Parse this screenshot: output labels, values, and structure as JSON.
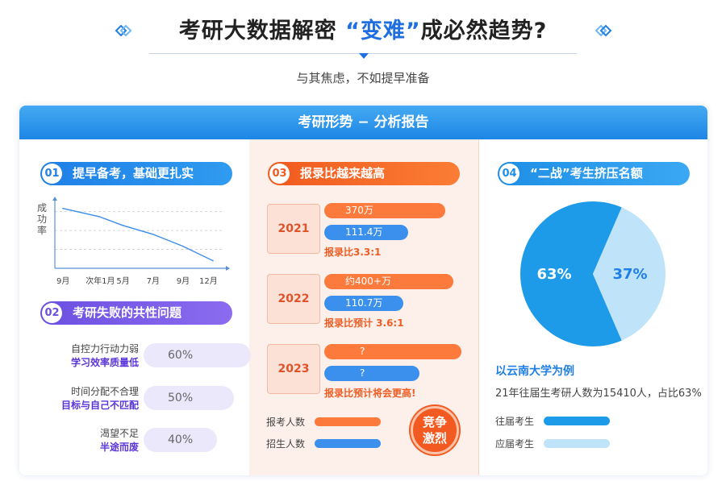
{
  "header": {
    "title_part1": "考研大数据解密 ",
    "title_highlight": "“变难”",
    "title_part2": "成必然趋势?",
    "subtitle": "与其焦虑，不如提早准备"
  },
  "card": {
    "title": "考研形势 − 分析报告"
  },
  "section1": {
    "num": "01",
    "title": "提早备考，基础更扎实",
    "ylabel": "成功率",
    "chart_data": {
      "type": "line",
      "title": "",
      "xlabel": "",
      "ylabel": "成功率",
      "categories": [
        "9月",
        "次年1月",
        "5月",
        "7月",
        "9月",
        "12月"
      ],
      "series": [
        {
          "values": [
            0.95,
            0.82,
            0.68,
            0.54,
            0.35,
            0.12
          ]
        }
      ],
      "ylim": [
        0,
        1.1
      ],
      "grid": true
    }
  },
  "section2": {
    "num": "02",
    "title": "考研失败的共性问题",
    "rows": [
      {
        "line1": "自控力行动力弱",
        "line2": "学习效率质量低",
        "value_label": "60%",
        "value": 0.6
      },
      {
        "line1": "时间分配不合理",
        "line2": "目标与自己不匹配",
        "value_label": "50%",
        "value": 0.5
      },
      {
        "line1": "渴望不足",
        "line2": "半途而废",
        "value_label": "40%",
        "value": 0.4
      }
    ]
  },
  "section3": {
    "num": "03",
    "title": "报录比越来越高",
    "years": [
      {
        "year": "2021",
        "applicants_label": "370万",
        "applicants": 370,
        "admitted_label": "111.4万",
        "admitted": 111.4,
        "ratio": "报录比3.3:1"
      },
      {
        "year": "2022",
        "applicants_label": "约400+万",
        "applicants": 400,
        "admitted_label": "110.7万",
        "admitted": 110.7,
        "ratio": "报录比预计 3.6:1"
      },
      {
        "year": "2023",
        "applicants_label": "?",
        "applicants": 420,
        "admitted_label": "?",
        "admitted": 110,
        "ratio": "报录比预计将会更高!"
      }
    ],
    "legend": {
      "applicants": "报考人数",
      "admitted": "招生人数"
    },
    "stamp_line1": "竞争",
    "stamp_line2": "激烈",
    "colors": {
      "applicants": "#fb7a3c",
      "admitted": "#3a90ec"
    }
  },
  "section4": {
    "num": "04",
    "title": "“二战”考生挤压名额",
    "chart_data": {
      "type": "pie",
      "title": "",
      "slices": [
        {
          "label": "往届考生",
          "value": 63,
          "value_label": "63%",
          "color": "#1e9be8"
        },
        {
          "label": "应届考生",
          "value": 37,
          "value_label": "37%",
          "color": "#bfe4fa"
        }
      ]
    },
    "example_title": "以云南大学为例",
    "example_desc": "21年往届生考研人数为15410人，占比63%",
    "legend": {
      "repeat": "往届考生",
      "fresh": "应届考生"
    }
  }
}
